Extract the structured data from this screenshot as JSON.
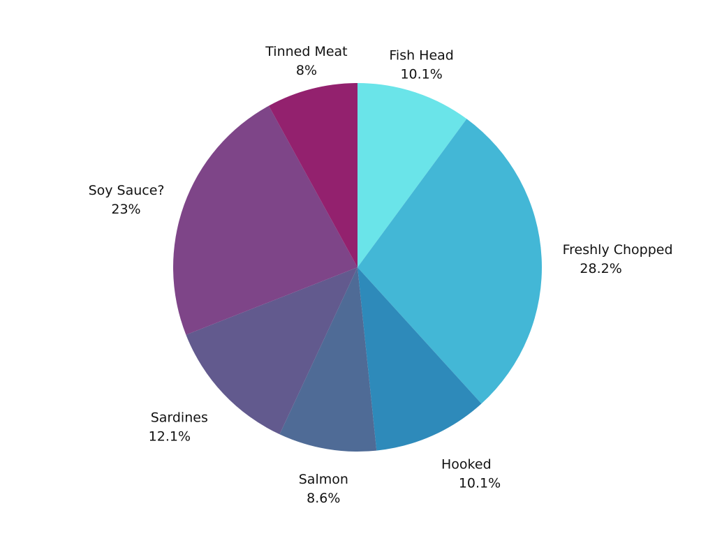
{
  "chart_data": {
    "type": "pie",
    "title": "",
    "start": "top",
    "direction": "clockwise",
    "slices": [
      {
        "label": "Fish Head",
        "value": 10.1,
        "value_label": "10.1%",
        "color": "#6ae4e9"
      },
      {
        "label": "Freshly Chopped",
        "value": 28.2,
        "value_label": "28.2%",
        "color": "#43b7d6"
      },
      {
        "label": "Hooked",
        "value": 10.1,
        "value_label": "10.1%",
        "color": "#2e8aba"
      },
      {
        "label": "Salmon",
        "value": 8.6,
        "value_label": "8.6%",
        "color": "#4f6b96"
      },
      {
        "label": "Sardines",
        "value": 12.1,
        "value_label": "12.1%",
        "color": "#625a8e"
      },
      {
        "label": "Soy Sauce?",
        "value": 23,
        "value_label": "23%",
        "color": "#7e4588"
      },
      {
        "label": "Tinned Meat",
        "value": 8,
        "value_label": "8%",
        "color": "#93216e"
      }
    ]
  }
}
